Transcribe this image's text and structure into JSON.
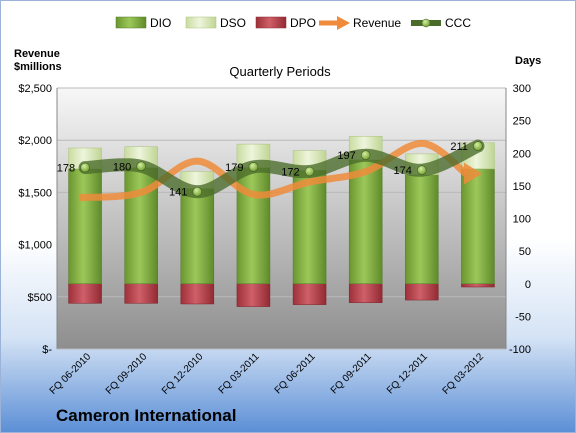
{
  "company": "Cameron International",
  "left_axis_title": [
    "Revenue",
    "$millions"
  ],
  "right_axis_title": "Days",
  "chart_title": "Quarterly Periods",
  "chart_data": {
    "type": "bar",
    "title": "Quarterly Periods",
    "categories": [
      "FQ 06-2010",
      "FQ 09-2010",
      "FQ 12-2010",
      "FQ 03-2011",
      "FQ 06-2011",
      "FQ 09-2011",
      "FQ 12-2011",
      "FQ 03-2012"
    ],
    "left_axis": {
      "label": "Revenue $millions",
      "ylim": [
        0,
        2500
      ],
      "ticks": [
        "$-",
        "$500",
        "$1,000",
        "$1,500",
        "$2,000",
        "$2,500"
      ]
    },
    "right_axis": {
      "label": "Days",
      "ylim": [
        -100,
        300
      ],
      "ticks": [
        "-100",
        "-50",
        "0",
        "50",
        "100",
        "150",
        "200",
        "250",
        "300"
      ]
    },
    "series": [
      {
        "name": "DIO",
        "type": "stacked-bar",
        "axis": "right",
        "values": [
          176,
          178,
          146,
          178,
          174,
          190,
          167,
          176
        ]
      },
      {
        "name": "DSO",
        "type": "stacked-bar",
        "axis": "right",
        "values": [
          32,
          32,
          26,
          36,
          30,
          36,
          32,
          40
        ]
      },
      {
        "name": "DPO",
        "type": "bar-negative",
        "axis": "right",
        "values": [
          -30,
          -30,
          -31,
          -35,
          -32,
          -29,
          -25,
          -5
        ]
      },
      {
        "name": "Revenue",
        "type": "line",
        "axis": "left",
        "values": [
          1450,
          1500,
          1800,
          1480,
          1600,
          1700,
          1970,
          1680
        ]
      },
      {
        "name": "CCC",
        "type": "line",
        "axis": "right",
        "values": [
          178,
          180,
          141,
          179,
          172,
          197,
          174,
          211
        ]
      }
    ],
    "data_labels": [
      "178",
      "180",
      "141",
      "179",
      "172",
      "197",
      "174",
      "211"
    ],
    "legend": [
      "DIO",
      "DSO",
      "DPO",
      "Revenue",
      "CCC"
    ],
    "legend_position": "top",
    "grid": true
  },
  "colors": {
    "DIO": "#77a336",
    "DSO": "#d8e8b8",
    "DPO": "#b5404a",
    "Revenue": "#ef8b3a",
    "CCC": "#4a6b2a"
  }
}
